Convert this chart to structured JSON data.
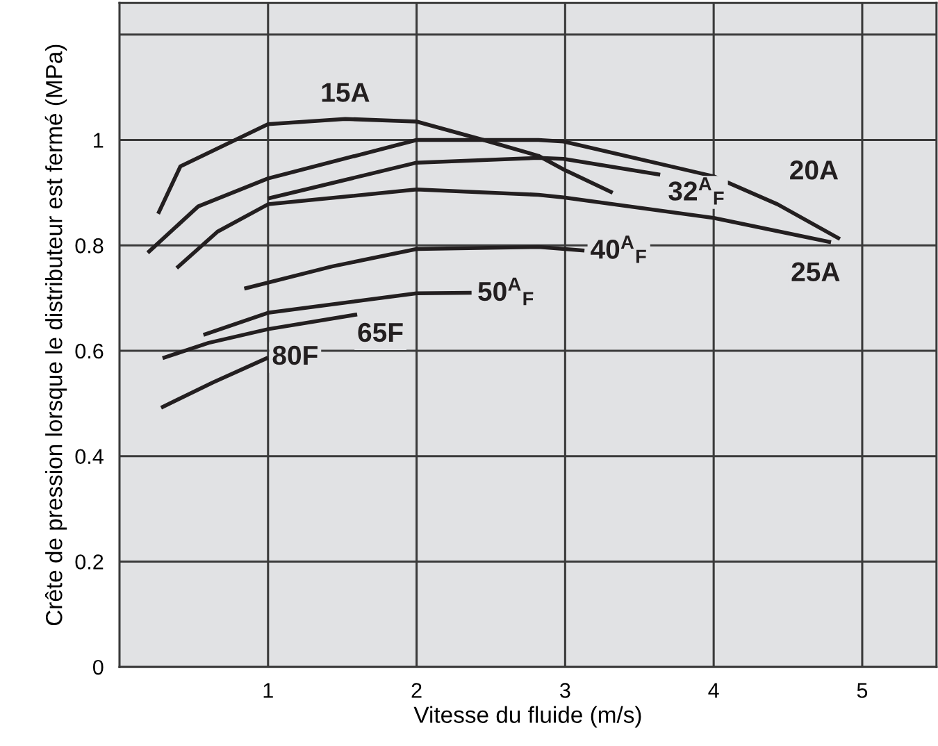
{
  "chart_data": {
    "type": "line",
    "xlabel": "Vitesse du fluide (m/s)",
    "ylabel": "Crête de pression lorsque le distributeur est fermé (MPa)",
    "xlim": [
      0,
      5.5
    ],
    "xticks": [
      1,
      2,
      3,
      4,
      5
    ],
    "ylim": [
      0,
      1.26
    ],
    "yticks": [
      0,
      0.2,
      0.4,
      0.6,
      0.8,
      1,
      {
        "value": 1.2,
        "label": null
      }
    ],
    "grid": true,
    "legend": false,
    "marker": "none",
    "line_style": "solid",
    "series": [
      {
        "name": "15A",
        "color": "#231f20",
        "x": [
          0.26,
          0.41,
          1.0,
          1.52,
          2.0,
          2.45,
          2.82,
          2.99,
          3.32
        ],
        "values": [
          0.86,
          0.95,
          1.03,
          1.04,
          1.035,
          1.0,
          0.97,
          0.944,
          0.9
        ]
      },
      {
        "name": "20A",
        "color": "#231f20",
        "x": [
          0.19,
          0.53,
          1.0,
          2.0,
          2.82,
          2.99,
          4.0,
          4.43,
          4.85
        ],
        "values": [
          0.786,
          0.874,
          0.927,
          1.0,
          1.0,
          0.997,
          0.931,
          0.878,
          0.812
        ]
      },
      {
        "name": "32$^{A}$$_{F}$",
        "color": "#231f20",
        "x": [
          1.0,
          2.0,
          2.82,
          2.99,
          3.64
        ],
        "values": [
          0.889,
          0.957,
          0.966,
          0.964,
          0.934
        ]
      },
      {
        "name": "25A",
        "color": "#231f20",
        "x": [
          0.385,
          0.66,
          1.0,
          2.0,
          2.82,
          2.99,
          4.0,
          4.79
        ],
        "values": [
          0.757,
          0.826,
          0.878,
          0.906,
          0.896,
          0.891,
          0.852,
          0.806
        ]
      },
      {
        "name": "40$^{A}$$_{F}$",
        "color": "#231f20",
        "x": [
          0.84,
          1.43,
          2.0,
          2.82,
          3.13
        ],
        "values": [
          0.718,
          0.76,
          0.793,
          0.797,
          0.79
        ]
      },
      {
        "name": "50$^{A}$$_{F}$",
        "color": "#231f20",
        "x": [
          0.565,
          1.0,
          2.0,
          2.37
        ],
        "values": [
          0.63,
          0.672,
          0.709,
          0.71
        ]
      },
      {
        "name": "65F",
        "color": "#231f20",
        "x": [
          0.29,
          0.6,
          1.0,
          1.6
        ],
        "values": [
          0.586,
          0.615,
          0.641,
          0.669
        ]
      },
      {
        "name": "80F",
        "color": "#231f20",
        "x": [
          0.28,
          0.63,
          1.0
        ],
        "values": [
          0.492,
          0.54,
          0.587
        ]
      }
    ]
  }
}
